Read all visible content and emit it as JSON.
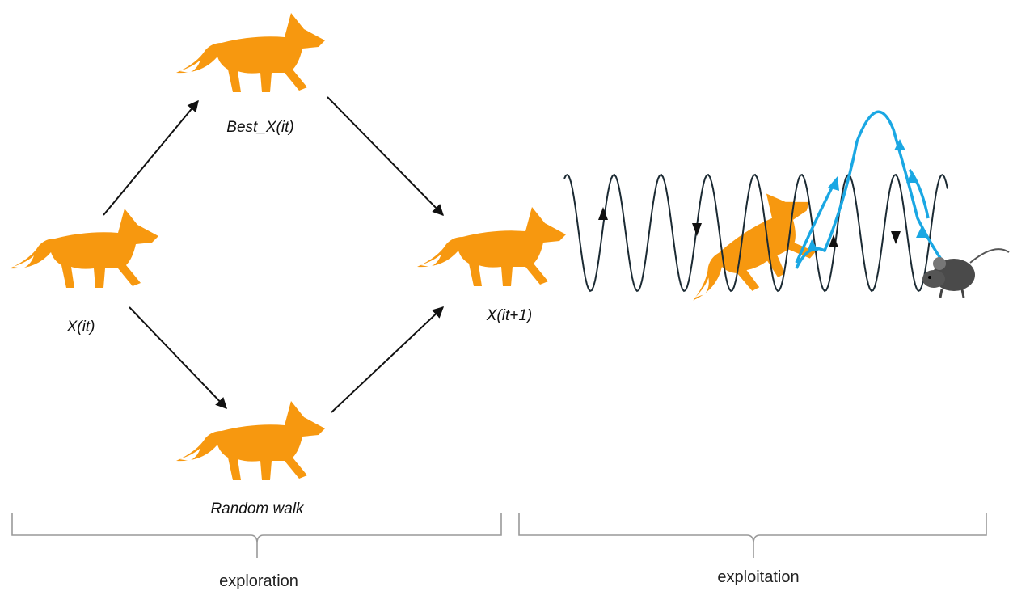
{
  "nodes": [
    {
      "label": "X(it)"
    },
    {
      "label": "Best_X(it)"
    },
    {
      "label": "Random walk"
    },
    {
      "label": "X(it+1)"
    }
  ],
  "phases": [
    {
      "label": "exploration"
    },
    {
      "label": "exploitation"
    }
  ]
}
